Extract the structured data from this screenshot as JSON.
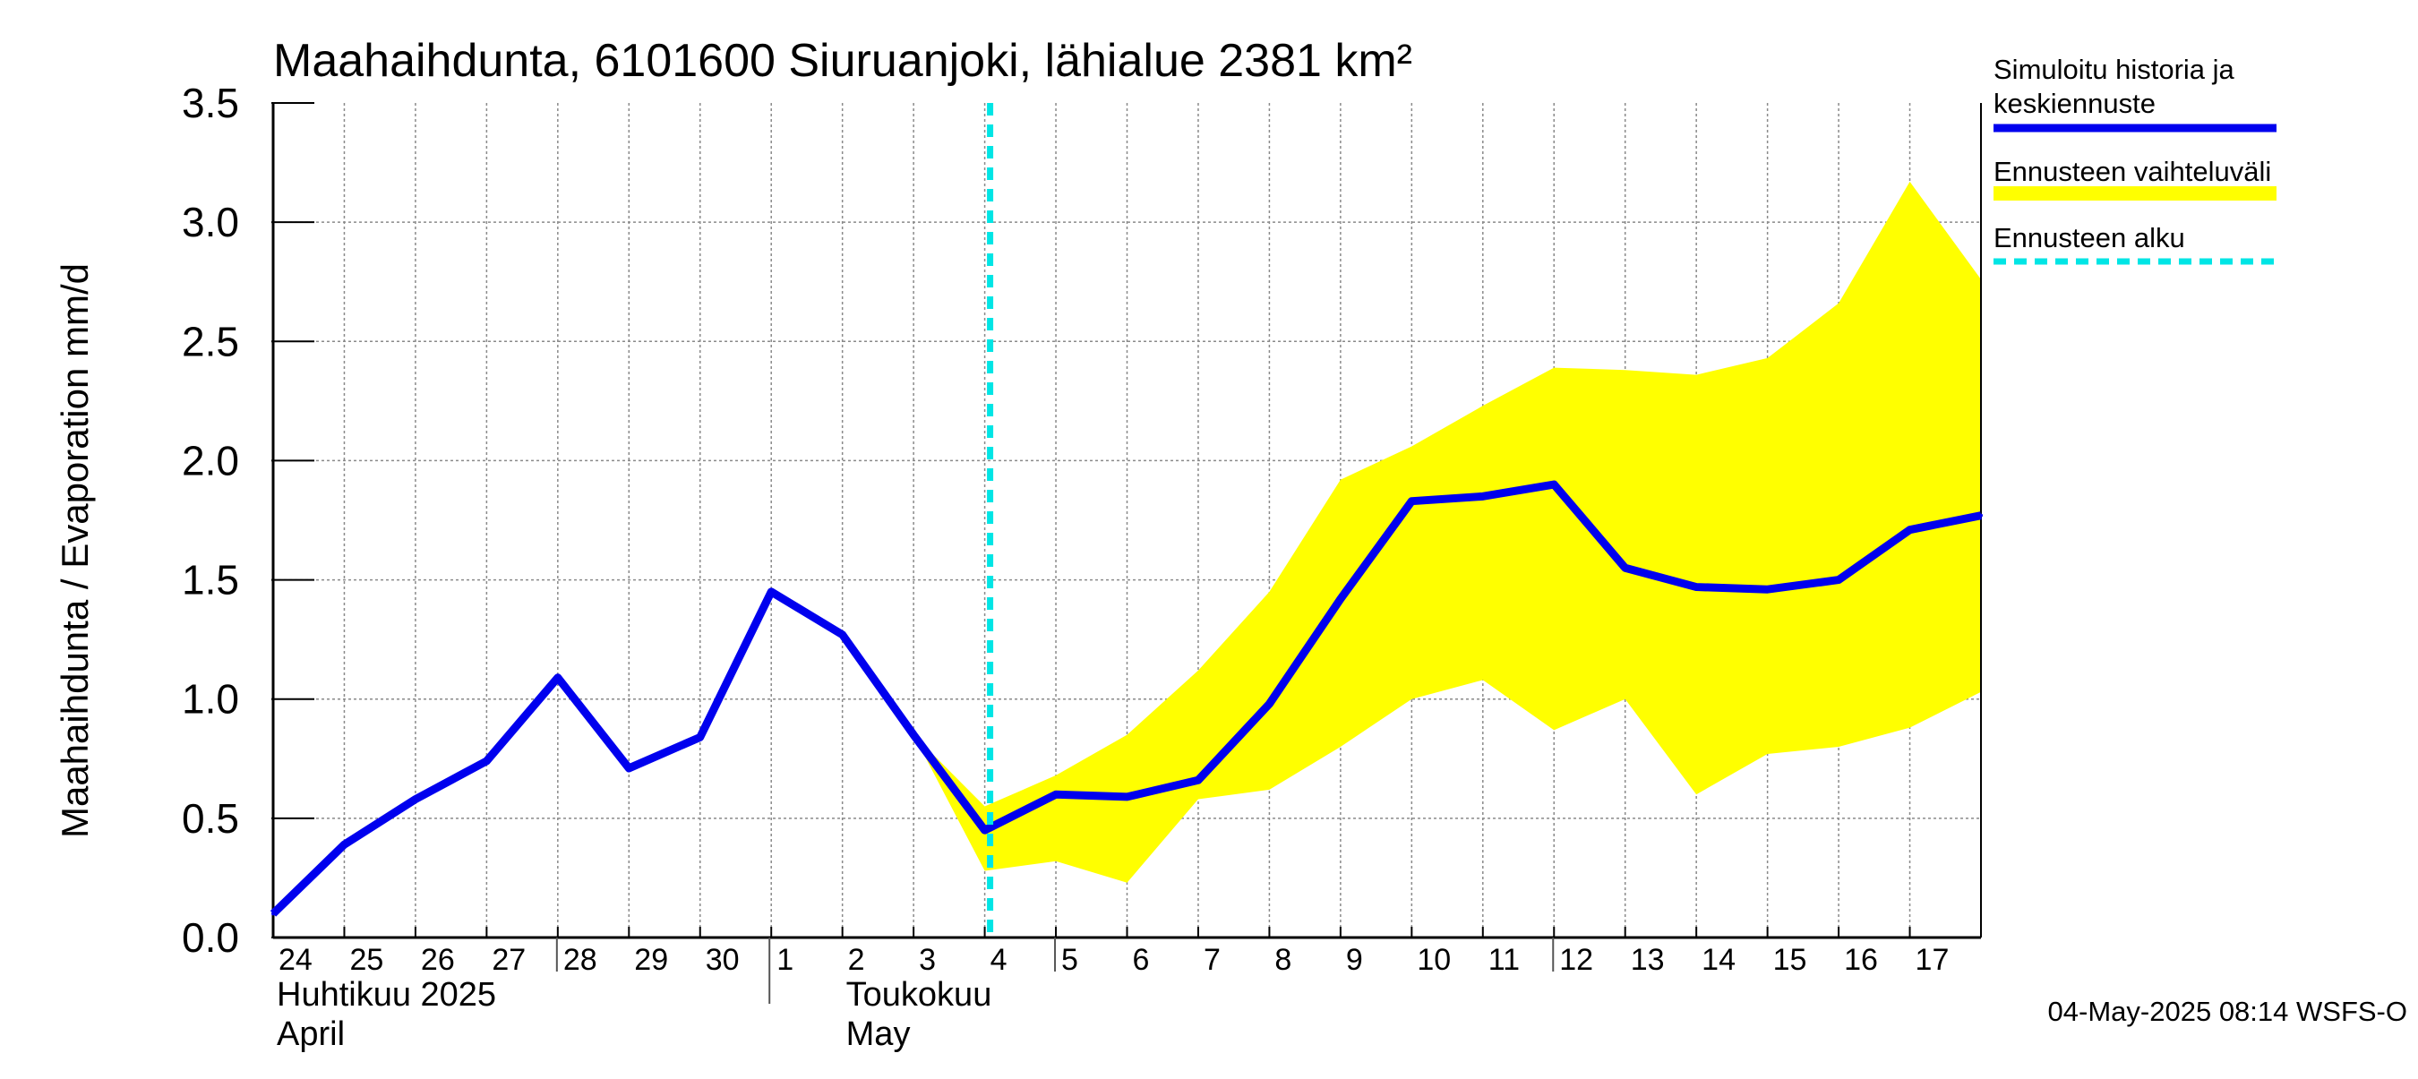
{
  "chart_data": {
    "type": "line",
    "title": "Maahaihdunta, 6101600 Siuruanjoki, lähialue 2381 km²",
    "ylabel": "Maahaihdunta / Evaporation   mm/d",
    "ylim": [
      0,
      3.5
    ],
    "yticks": [
      "0.0",
      "0.5",
      "1.0",
      "1.5",
      "2.0",
      "2.5",
      "3.0",
      "3.5"
    ],
    "grid": true,
    "x_tick_labels": [
      "24",
      "25",
      "26",
      "27",
      "28",
      "29",
      "30",
      "1",
      "2",
      "3",
      "4",
      "5",
      "6",
      "7",
      "8",
      "9",
      "10",
      "11",
      "12",
      "13",
      "14",
      "15",
      "16",
      "17"
    ],
    "month_labels": [
      {
        "line1": "Huhtikuu  2025",
        "line2": "April"
      },
      {
        "line1": "Toukokuu",
        "line2": "May"
      }
    ],
    "forecast_start_index": 10,
    "series": [
      {
        "name": "Simuloitu historia ja keskiennuste",
        "color": "#0000ee",
        "x": [
          0,
          1,
          2,
          3,
          4,
          5,
          6,
          7,
          8,
          9,
          10,
          11,
          12,
          13,
          14,
          15,
          16,
          17,
          18,
          19,
          20,
          21,
          22,
          23,
          24
        ],
        "values": [
          0.1,
          0.39,
          0.58,
          0.74,
          1.09,
          0.71,
          0.84,
          1.45,
          1.27,
          0.85,
          0.45,
          0.6,
          0.59,
          0.66,
          0.98,
          1.42,
          1.83,
          1.85,
          1.9,
          1.55,
          1.47,
          1.46,
          1.5,
          1.71,
          1.77
        ]
      },
      {
        "name": "Ennusteen vaihteluväli",
        "color": "#ffff00",
        "x": [
          9,
          10,
          11,
          12,
          13,
          14,
          15,
          16,
          17,
          18,
          19,
          20,
          21,
          22,
          23,
          24
        ],
        "lower": [
          0.85,
          0.28,
          0.32,
          0.23,
          0.58,
          0.62,
          0.8,
          1.0,
          1.08,
          0.87,
          1.0,
          0.6,
          0.77,
          0.8,
          0.88,
          1.03
        ],
        "upper": [
          0.85,
          0.55,
          0.68,
          0.85,
          1.12,
          1.45,
          1.92,
          2.06,
          2.23,
          2.39,
          2.38,
          2.36,
          2.43,
          2.66,
          3.17,
          2.76
        ]
      }
    ],
    "legend": [
      {
        "label": "Simuloitu historia ja\nkeskiennuste",
        "color": "#0000ee",
        "style": "solid"
      },
      {
        "label": "Ennusteen vaihteluväli",
        "color": "#ffff00",
        "style": "solid"
      },
      {
        "label": "Ennusteen alku",
        "color": "#00e5e5",
        "style": "dashed"
      }
    ],
    "legend_position": "right",
    "footer": "04-May-2025 08:14 WSFS-O"
  }
}
